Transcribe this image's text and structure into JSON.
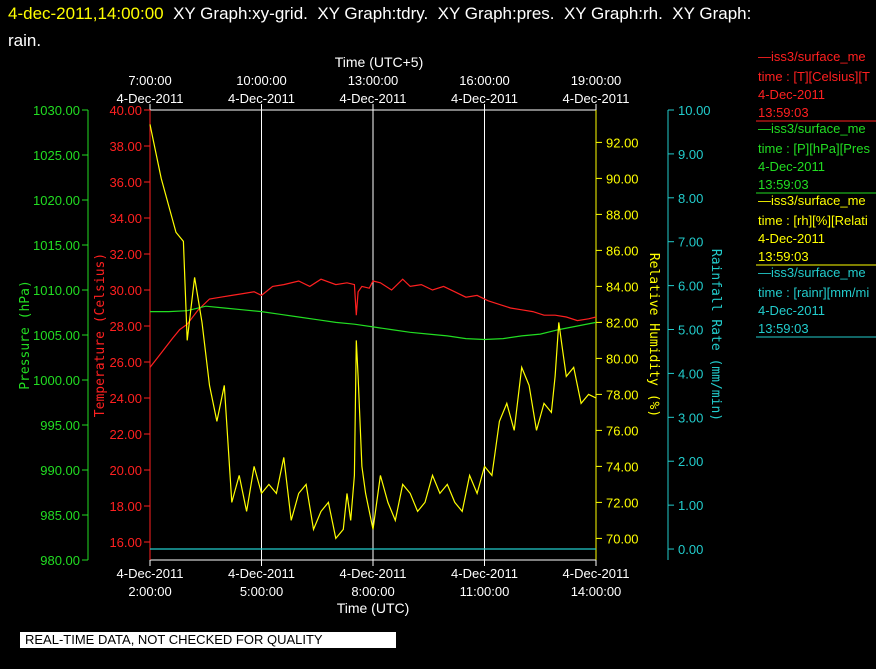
{
  "header": {
    "timestamp": "4-dec-2011,14:00:00",
    "line1_rest": "  XY Graph:xy-grid.  XY Graph:tdry.  XY Graph:pres.  XY Graph:rh.  XY Graph:",
    "line2": "rain."
  },
  "notice": "REAL-TIME DATA, NOT CHECKED FOR QUALITY",
  "colors": {
    "temperature": "#ff2020",
    "pressure": "#22dd22",
    "humidity": "#ffff00",
    "rain": "#22cccc",
    "frame": "#ffffff"
  },
  "chart_data": {
    "type": "line",
    "x_bottom": {
      "label": "Time (UTC)",
      "ticks": [
        {
          "date": "4-Dec-2011",
          "time": "2:00:00"
        },
        {
          "date": "4-Dec-2011",
          "time": "5:00:00"
        },
        {
          "date": "4-Dec-2011",
          "time": "8:00:00"
        },
        {
          "date": "4-Dec-2011",
          "time": "11:00:00"
        },
        {
          "date": "4-Dec-2011",
          "time": "14:00:00"
        }
      ]
    },
    "x_top": {
      "label": "Time (UTC+5)",
      "ticks": [
        {
          "time": "7:00:00",
          "date": "4-Dec-2011"
        },
        {
          "time": "10:00:00",
          "date": "4-Dec-2011"
        },
        {
          "time": "13:00:00",
          "date": "4-Dec-2011"
        },
        {
          "time": "16:00:00",
          "date": "4-Dec-2011"
        },
        {
          "time": "19:00:00",
          "date": "4-Dec-2011"
        }
      ]
    },
    "axes": {
      "pressure": {
        "label": "Pressure (hPa)",
        "range": [
          980,
          1030
        ],
        "ticks": [
          "980.00",
          "985.00",
          "990.00",
          "995.00",
          "1000.00",
          "1005.00",
          "1010.00",
          "1015.00",
          "1020.00",
          "1025.00",
          "1030.00"
        ]
      },
      "temperature": {
        "label": "Temperature (Celsius)",
        "range": [
          15,
          40
        ],
        "ticks": [
          "16.00",
          "18.00",
          "20.00",
          "22.00",
          "24.00",
          "26.00",
          "28.00",
          "30.00",
          "32.00",
          "34.00",
          "36.00",
          "38.00",
          "40.00"
        ]
      },
      "humidity": {
        "label": "Relative Humidity (%)",
        "range": [
          68.8,
          93.8
        ],
        "ticks": [
          "70.00",
          "72.00",
          "74.00",
          "76.00",
          "78.00",
          "80.00",
          "82.00",
          "84.00",
          "86.00",
          "88.00",
          "90.00",
          "92.00"
        ]
      },
      "rain": {
        "label": "Rainfall Rate (mm/min)",
        "range": [
          -0.25,
          10
        ],
        "ticks": [
          "0.00",
          "1.00",
          "2.00",
          "3.00",
          "4.00",
          "5.00",
          "6.00",
          "7.00",
          "8.00",
          "9.00",
          "10.00"
        ]
      }
    },
    "series": [
      {
        "name": "temperature",
        "unit": "Celsius",
        "x": [
          2.0,
          2.3,
          2.6,
          2.8,
          3.0,
          3.3,
          3.6,
          3.9,
          4.2,
          4.5,
          4.8,
          5.0,
          5.3,
          5.6,
          6.0,
          6.3,
          6.6,
          7.0,
          7.3,
          7.5,
          7.55,
          7.6,
          7.7,
          7.9,
          8.0,
          8.2,
          8.5,
          8.8,
          9.0,
          9.3,
          9.6,
          9.9,
          10.2,
          10.5,
          10.8,
          11.1,
          11.4,
          11.7,
          12.0,
          12.3,
          12.6,
          12.9,
          13.2,
          13.5,
          13.8,
          14.0
        ],
        "y": [
          25.7,
          26.5,
          27.3,
          27.8,
          28.1,
          28.9,
          29.5,
          29.6,
          29.7,
          29.8,
          29.9,
          29.7,
          30.2,
          30.3,
          30.5,
          30.2,
          30.6,
          30.3,
          30.4,
          30.3,
          28.6,
          29.9,
          30.2,
          30.1,
          30.5,
          30.4,
          30.0,
          30.6,
          30.2,
          30.3,
          30.0,
          30.2,
          29.9,
          29.6,
          29.7,
          29.4,
          29.2,
          29.0,
          28.9,
          28.8,
          28.6,
          28.6,
          28.5,
          28.3,
          28.4,
          28.5
        ]
      },
      {
        "name": "pressure",
        "unit": "hPa",
        "x": [
          2.0,
          2.5,
          3.0,
          3.5,
          4.0,
          4.5,
          5.0,
          5.5,
          6.0,
          6.5,
          7.0,
          7.5,
          8.0,
          8.5,
          9.0,
          9.5,
          10.0,
          10.5,
          11.0,
          11.5,
          12.0,
          12.5,
          13.0,
          13.5,
          14.0
        ],
        "y": [
          1007.6,
          1007.6,
          1007.7,
          1008.2,
          1008.0,
          1007.8,
          1007.6,
          1007.3,
          1007.0,
          1006.7,
          1006.4,
          1006.2,
          1005.9,
          1005.6,
          1005.3,
          1005.1,
          1004.9,
          1004.6,
          1004.5,
          1004.6,
          1004.9,
          1005.1,
          1005.6,
          1006.0,
          1006.4
        ]
      },
      {
        "name": "relative humidity",
        "unit": "%",
        "x": [
          2.0,
          2.1,
          2.3,
          2.5,
          2.7,
          2.9,
          3.0,
          3.2,
          3.4,
          3.6,
          3.8,
          4.0,
          4.2,
          4.4,
          4.6,
          4.8,
          5.0,
          5.2,
          5.4,
          5.6,
          5.8,
          6.0,
          6.2,
          6.4,
          6.6,
          6.8,
          7.0,
          7.2,
          7.3,
          7.4,
          7.5,
          7.55,
          7.6,
          7.7,
          7.8,
          8.0,
          8.2,
          8.4,
          8.6,
          8.8,
          9.0,
          9.2,
          9.4,
          9.6,
          9.8,
          10.0,
          10.2,
          10.4,
          10.6,
          10.8,
          11.0,
          11.2,
          11.4,
          11.6,
          11.8,
          12.0,
          12.2,
          12.4,
          12.6,
          12.8,
          12.9,
          13.0,
          13.1,
          13.2,
          13.4,
          13.6,
          13.8,
          14.0
        ],
        "y": [
          93.0,
          92.0,
          90.0,
          88.5,
          87.0,
          86.5,
          81.0,
          84.5,
          82.0,
          78.5,
          76.5,
          78.5,
          72.0,
          73.5,
          71.5,
          74.0,
          72.5,
          73.0,
          72.5,
          74.5,
          71.0,
          72.5,
          73.0,
          70.5,
          71.5,
          72.0,
          70.0,
          70.5,
          72.5,
          71.0,
          73.5,
          81.0,
          79.0,
          74.0,
          72.5,
          70.5,
          73.5,
          72.0,
          71.0,
          73.0,
          72.5,
          71.5,
          72.0,
          73.5,
          72.5,
          73.0,
          72.0,
          71.5,
          73.5,
          72.5,
          74.0,
          73.5,
          76.5,
          77.5,
          76.0,
          79.5,
          78.5,
          76.0,
          77.5,
          77.0,
          79.0,
          82.0,
          80.5,
          79.0,
          79.5,
          77.5,
          78.0,
          77.8
        ]
      },
      {
        "name": "rainfall rate",
        "unit": "mm/min",
        "x": [
          2.0,
          14.0
        ],
        "y": [
          0.0,
          0.0
        ]
      }
    ],
    "legend": {
      "placement": "right",
      "entries": [
        {
          "name": "—iss3/surface_me",
          "detail": "time : [T][Celsius][T",
          "date": "4-Dec-2011",
          "time": "13:59:03"
        },
        {
          "name": "—iss3/surface_me",
          "detail": "time : [P][hPa][Pres",
          "date": "4-Dec-2011",
          "time": "13:59:03"
        },
        {
          "name": "—iss3/surface_me",
          "detail": "time : [rh][%][Relati",
          "date": "4-Dec-2011",
          "time": "13:59:03"
        },
        {
          "name": "—iss3/surface_me",
          "detail": "time : [rainr][mm/mi",
          "date": "4-Dec-2011",
          "time": "13:59:03"
        }
      ]
    },
    "grid": true
  }
}
